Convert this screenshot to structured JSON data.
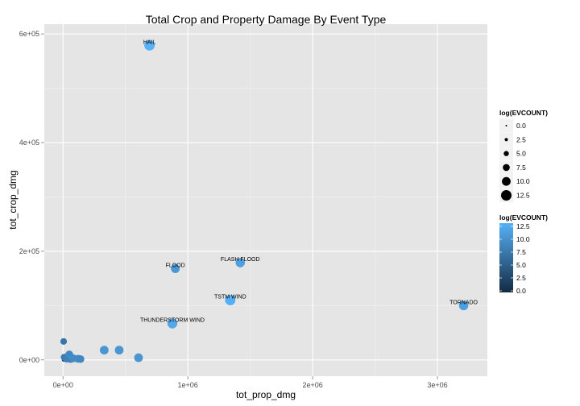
{
  "chart_data": {
    "type": "scatter",
    "title": "Total Crop and Property Damage By Event Type",
    "xlabel": "tot_prop_dmg",
    "ylabel": "tot_crop_dmg",
    "xlim": [
      -150000,
      3400000
    ],
    "ylim": [
      -30000,
      618000
    ],
    "x_ticks": [
      {
        "value": 0,
        "label": "0e+00"
      },
      {
        "value": 1000000,
        "label": "1e+06"
      },
      {
        "value": 2000000,
        "label": "2e+06"
      },
      {
        "value": 3000000,
        "label": "3e+06"
      }
    ],
    "y_ticks": [
      {
        "value": 0,
        "label": "0e+00"
      },
      {
        "value": 200000,
        "label": "2e+05"
      },
      {
        "value": 400000,
        "label": "4e+05"
      },
      {
        "value": 600000,
        "label": "6e+05"
      }
    ],
    "grid": true,
    "background": "#e5e5e5",
    "points": [
      {
        "label": "HAIL",
        "x": 693000,
        "y": 579000,
        "log_evcount": 12.5
      },
      {
        "label": "FLASH FLOOD",
        "x": 1420000,
        "y": 179000,
        "log_evcount": 10.9
      },
      {
        "label": "FLOOD",
        "x": 900000,
        "y": 168000,
        "log_evcount": 10.1
      },
      {
        "label": "TSTM WIND",
        "x": 1340000,
        "y": 110000,
        "log_evcount": 12.3
      },
      {
        "label": "TORNADO",
        "x": 3210000,
        "y": 100000,
        "log_evcount": 11.0
      },
      {
        "label": "THUNDERSTORM WIND",
        "x": 876000,
        "y": 67000,
        "log_evcount": 11.7
      },
      {
        "label": "",
        "x": 330000,
        "y": 18000,
        "log_evcount": 10.0
      },
      {
        "label": "",
        "x": 450000,
        "y": 18000,
        "log_evcount": 10.0
      },
      {
        "label": "",
        "x": 605000,
        "y": 4000,
        "log_evcount": 10.0
      },
      {
        "label": "",
        "x": 5000,
        "y": 34000,
        "log_evcount": 7.0
      },
      {
        "label": "",
        "x": 50000,
        "y": 10000,
        "log_evcount": 8.8
      },
      {
        "label": "",
        "x": 10000,
        "y": 5000,
        "log_evcount": 7.5
      },
      {
        "label": "",
        "x": 30000,
        "y": 2000,
        "log_evcount": 8.0
      },
      {
        "label": "",
        "x": 80000,
        "y": 3000,
        "log_evcount": 9.0
      },
      {
        "label": "",
        "x": 120000,
        "y": 2000,
        "log_evcount": 8.8
      },
      {
        "label": "",
        "x": 140000,
        "y": 1500,
        "log_evcount": 8.5
      },
      {
        "label": "",
        "x": 60000,
        "y": 1000,
        "log_evcount": 7.5
      },
      {
        "label": "",
        "x": 5000,
        "y": 0,
        "log_evcount": 3.0
      }
    ],
    "legends": [
      {
        "type": "size",
        "title": "log(EVCOUNT)",
        "entries": [
          {
            "value": 0.0,
            "label": "0.0"
          },
          {
            "value": 2.5,
            "label": "2.5"
          },
          {
            "value": 5.0,
            "label": "5.0"
          },
          {
            "value": 7.5,
            "label": "7.5"
          },
          {
            "value": 10.0,
            "label": "10.0"
          },
          {
            "value": 12.5,
            "label": "12.5"
          }
        ]
      },
      {
        "type": "color",
        "title": "log(EVCOUNT)",
        "ticks": [
          {
            "value": 12.5,
            "label": "12.5"
          },
          {
            "value": 10.0,
            "label": "10.0"
          },
          {
            "value": 7.5,
            "label": "7.5"
          },
          {
            "value": 5.0,
            "label": "5.0"
          },
          {
            "value": 2.5,
            "label": "2.5"
          },
          {
            "value": 0.0,
            "label": "0.0"
          }
        ],
        "low_color": "#132b43",
        "high_color": "#56b1f7"
      }
    ]
  }
}
